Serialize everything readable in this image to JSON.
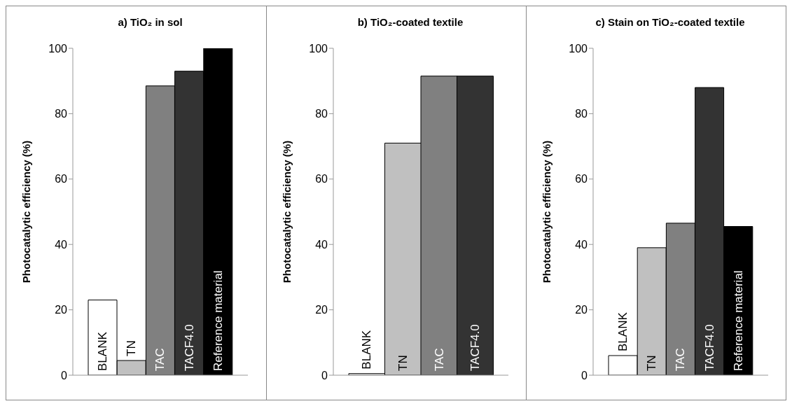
{
  "chart_data": [
    {
      "type": "bar",
      "title": "a) TiO₂ in sol",
      "ylabel": "Photocatalytic efficiency (%)",
      "categories": [
        "BLANK",
        "TN",
        "TAC",
        "TACF4.0",
        "Reference material"
      ],
      "values": [
        23,
        4.5,
        88.5,
        93,
        100
      ],
      "colors": [
        "#ffffff",
        "#c0c0c0",
        "#808080",
        "#333333",
        "#000000"
      ],
      "ylim": [
        0,
        100
      ],
      "yticks": [
        0,
        20,
        40,
        60,
        80,
        100
      ]
    },
    {
      "type": "bar",
      "title": "b)  TiO₂-coated textile",
      "ylabel": "Photocatalytic efficiency  (%)",
      "categories": [
        "BLANK",
        "TN",
        "TAC",
        "TACF4.0"
      ],
      "values": [
        0.5,
        71,
        91.5,
        91.5
      ],
      "colors": [
        "#ffffff",
        "#c0c0c0",
        "#808080",
        "#333333"
      ],
      "ylim": [
        0,
        100
      ],
      "yticks": [
        0,
        20,
        40,
        60,
        80,
        100
      ]
    },
    {
      "type": "bar",
      "title": "c) Stain on TiO₂-coated textile",
      "ylabel": "Photocatalytic efficiency (%)",
      "categories": [
        "BLANK",
        "TN",
        "TAC",
        "TACF4.0",
        "Reference material"
      ],
      "values": [
        6,
        39,
        46.5,
        88,
        45.5
      ],
      "colors": [
        "#ffffff",
        "#c0c0c0",
        "#808080",
        "#333333",
        "#000000"
      ],
      "ylim": [
        0,
        100
      ],
      "yticks": [
        0,
        20,
        40,
        60,
        80,
        100
      ]
    }
  ]
}
